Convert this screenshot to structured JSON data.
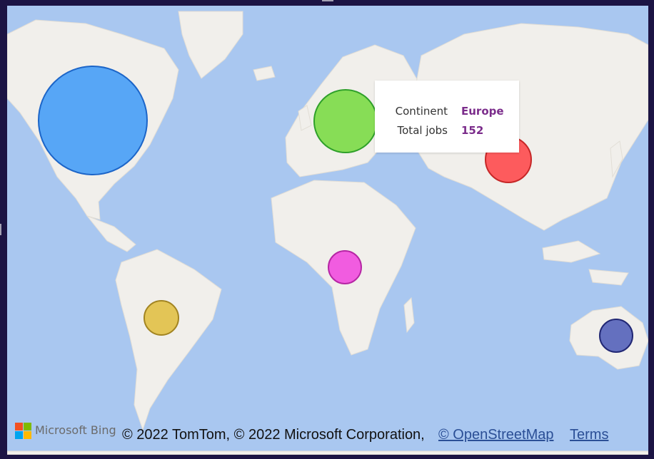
{
  "map": {
    "colors": {
      "water": "#a9c7f0",
      "land": "#f1efeb"
    },
    "bubbles": [
      {
        "name": "north-america",
        "fill": "#4ba0f7",
        "stroke": "#0a5ac6"
      },
      {
        "name": "europe",
        "fill": "#7fdc4a",
        "stroke": "#1f9a1a"
      },
      {
        "name": "asia",
        "fill": "#ff4f52",
        "stroke": "#c31717"
      },
      {
        "name": "africa",
        "fill": "#f250e0",
        "stroke": "#b1169f"
      },
      {
        "name": "south-america",
        "fill": "#e2c24a",
        "stroke": "#9c7b10"
      },
      {
        "name": "oceania",
        "fill": "#5966bc",
        "stroke": "#10176a"
      }
    ]
  },
  "tooltip": {
    "key1": "Continent",
    "value1": "Europe",
    "key2": "Total jobs",
    "value2": "152"
  },
  "attribution": {
    "brand": "Microsoft Bing",
    "logo_colors": [
      "#f25022",
      "#7fba00",
      "#00a4ef",
      "#ffb900"
    ],
    "copyright": "© 2022 TomTom, © 2022 Microsoft Corporation,",
    "osm_link": "© OpenStreetMap",
    "terms_link": "Terms"
  }
}
